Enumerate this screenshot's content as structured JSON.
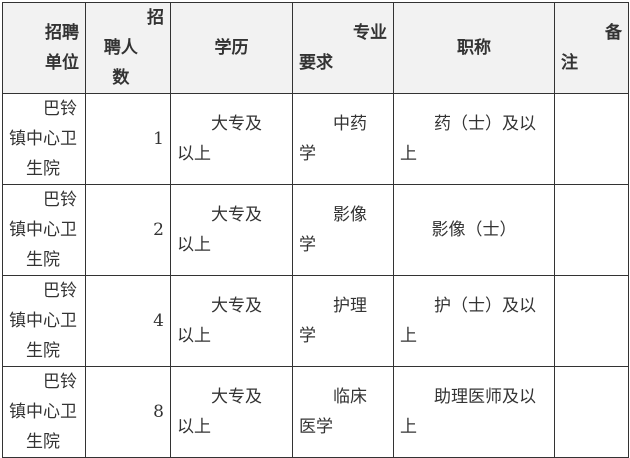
{
  "headers": [
    {
      "lines": [
        "招聘",
        "单位"
      ]
    },
    {
      "lines": [
        "招",
        "聘人",
        "数"
      ]
    },
    {
      "lines": [
        "学历"
      ]
    },
    {
      "lines": [
        "专业",
        "要求"
      ]
    },
    {
      "lines": [
        "职称"
      ]
    },
    {
      "lines": [
        "备",
        "注"
      ]
    }
  ],
  "rows": [
    {
      "unit": [
        "巴铃",
        "镇中心卫",
        "生院"
      ],
      "count": "1",
      "edu": [
        "大专及",
        "以上"
      ],
      "major": [
        "中药",
        "学"
      ],
      "title": [
        "药（士）及以",
        "上"
      ],
      "note": ""
    },
    {
      "unit": [
        "巴铃",
        "镇中心卫",
        "生院"
      ],
      "count": "2",
      "edu": [
        "大专及",
        "以上"
      ],
      "major": [
        "影像",
        "学"
      ],
      "title": [
        "影像（士）"
      ],
      "note": ""
    },
    {
      "unit": [
        "巴铃",
        "镇中心卫",
        "生院"
      ],
      "count": "4",
      "edu": [
        "大专及",
        "以上"
      ],
      "major": [
        "护理",
        "学"
      ],
      "title": [
        "护（士）及以",
        "上"
      ],
      "note": ""
    },
    {
      "unit": [
        "巴铃",
        "镇中心卫",
        "生院"
      ],
      "count": "8",
      "edu": [
        "大专及",
        "以上"
      ],
      "major": [
        "临床",
        "医学"
      ],
      "title": [
        "助理医师及以",
        "上"
      ],
      "note": ""
    }
  ]
}
